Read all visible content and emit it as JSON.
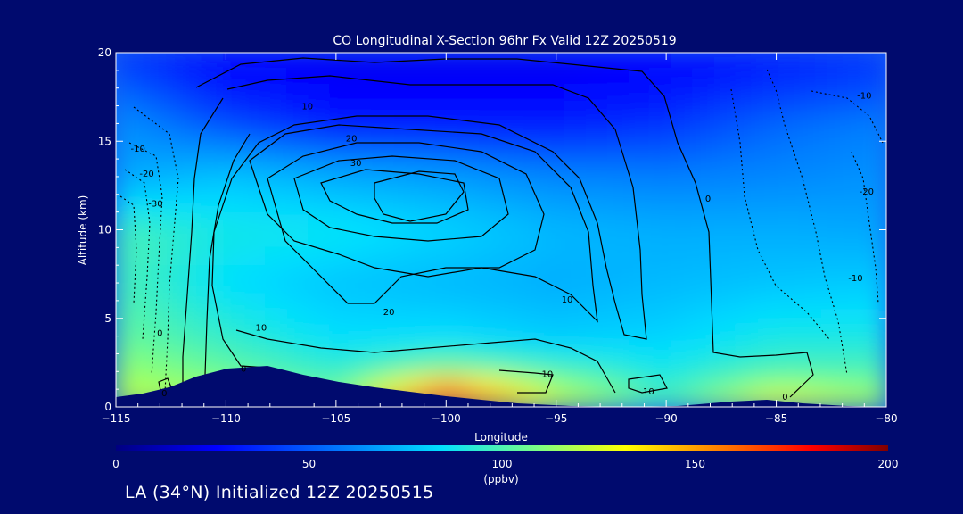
{
  "chart_data": {
    "type": "heatmap",
    "title": "CO Longitudinal X-Section 96hr  Fx Valid 12Z 20250519",
    "xlabel": "Longitude",
    "ylabel": "Altitude (km)",
    "xlim": [
      -115,
      -80
    ],
    "ylim": [
      0,
      20
    ],
    "xticks": [
      -115,
      -110,
      -105,
      -100,
      -95,
      -90,
      -85,
      -80
    ],
    "xtick_labels": [
      "−115",
      "−110",
      "−105",
      "−100",
      "−95",
      "−90",
      "−85",
      "−80"
    ],
    "yticks": [
      0,
      5,
      10,
      15,
      20
    ],
    "colorbar": {
      "label": "(ppbv)",
      "range": [
        0,
        200
      ],
      "ticks": [
        0,
        50,
        100,
        150,
        200
      ]
    },
    "colormap": [
      "#000080",
      "#0000ff",
      "#0080ff",
      "#00e0ff",
      "#80ff80",
      "#ffff00",
      "#ff8000",
      "#ff0000",
      "#800000"
    ],
    "co_field": {
      "x": [
        -115,
        -110,
        -105,
        -100,
        -95,
        -90,
        -85,
        -80
      ],
      "y": [
        0,
        1,
        2,
        4,
        7,
        10,
        13,
        16,
        18,
        20
      ],
      "values": [
        [
          115,
          110,
          100,
          175,
          120,
          90,
          130,
          110
        ],
        [
          110,
          105,
          95,
          160,
          110,
          85,
          110,
          100
        ],
        [
          105,
          95,
          85,
          100,
          90,
          80,
          90,
          90
        ],
        [
          95,
          85,
          75,
          75,
          70,
          72,
          80,
          80
        ],
        [
          90,
          75,
          68,
          65,
          62,
          65,
          68,
          70
        ],
        [
          90,
          80,
          78,
          72,
          65,
          62,
          62,
          60
        ],
        [
          60,
          68,
          62,
          58,
          52,
          50,
          52,
          55
        ],
        [
          55,
          40,
          30,
          30,
          30,
          35,
          45,
          50
        ],
        [
          45,
          30,
          25,
          25,
          25,
          28,
          35,
          40
        ],
        [
          35,
          25,
          22,
          22,
          22,
          25,
          30,
          35
        ]
      ]
    },
    "contour_labels": [
      {
        "text": "10",
        "lon": -106.3,
        "alt": 17.0
      },
      {
        "text": "20",
        "lon": -104.3,
        "alt": 15.2
      },
      {
        "text": "30",
        "lon": -104.1,
        "alt": 13.8
      },
      {
        "text": "10",
        "lon": -108.4,
        "alt": 4.5
      },
      {
        "text": "20",
        "lon": -102.6,
        "alt": 5.4
      },
      {
        "text": "10",
        "lon": -95.4,
        "alt": 1.9
      },
      {
        "text": "10",
        "lon": -90.8,
        "alt": 0.9
      },
      {
        "text": "10",
        "lon": -94.5,
        "alt": 6.1
      },
      {
        "text": "0",
        "lon": -113.0,
        "alt": 4.2
      },
      {
        "text": "0",
        "lon": -109.2,
        "alt": 2.2
      },
      {
        "text": "0",
        "lon": -112.8,
        "alt": 0.8
      },
      {
        "text": "0",
        "lon": -84.6,
        "alt": 0.6
      },
      {
        "text": "0",
        "lon": -88.1,
        "alt": 11.8
      },
      {
        "text": "-10",
        "lon": -114.0,
        "alt": 14.6
      },
      {
        "text": "-20",
        "lon": -113.6,
        "alt": 13.2
      },
      {
        "text": "-30",
        "lon": -113.2,
        "alt": 11.5
      },
      {
        "text": "-10",
        "lon": -81.0,
        "alt": 17.6
      },
      {
        "text": "-20",
        "lon": -80.9,
        "alt": 12.2
      },
      {
        "text": "-10",
        "lon": -81.4,
        "alt": 7.3
      }
    ]
  },
  "footer": "LA (34°N) Initialized 12Z 20250515"
}
